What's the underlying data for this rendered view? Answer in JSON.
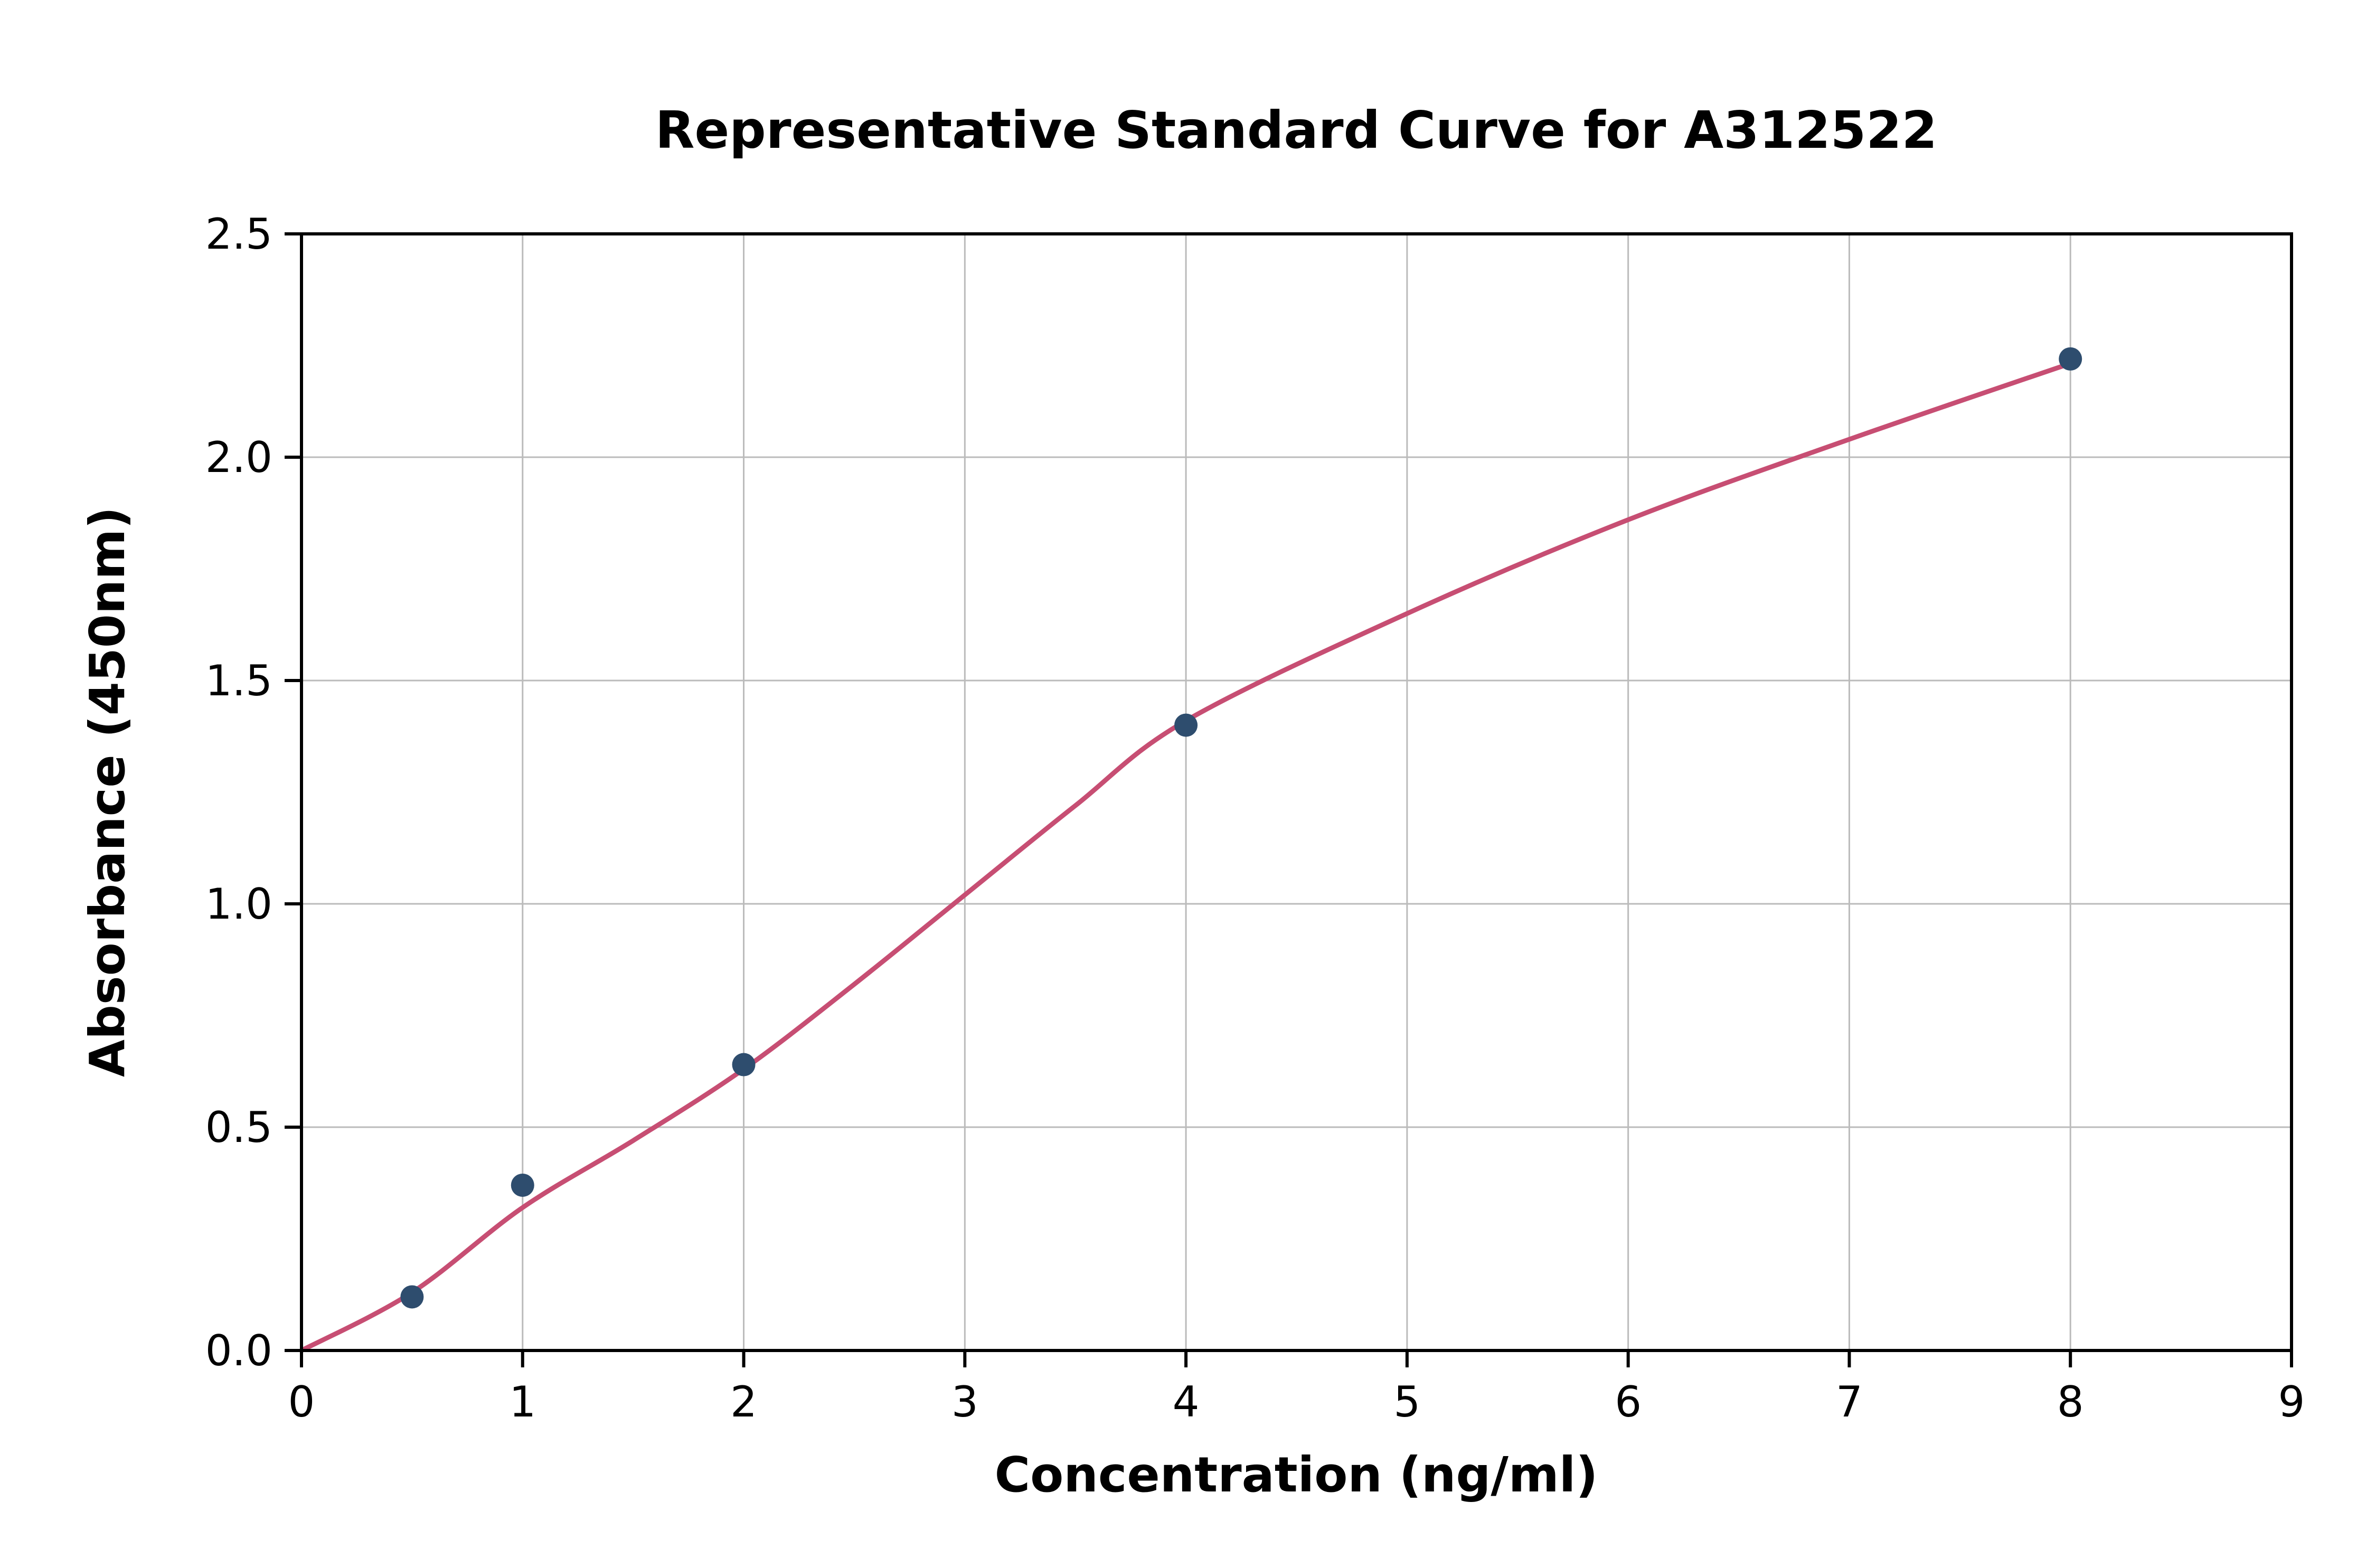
{
  "chart_data": {
    "type": "scatter",
    "title": "Representative Standard Curve for A312522",
    "xlabel": "Concentration (ng/ml)",
    "ylabel": "Absorbance (450nm)",
    "xlim": [
      0,
      9
    ],
    "ylim": [
      0,
      2.5
    ],
    "grid": true,
    "legend": "none",
    "x_ticks": [
      0,
      1,
      2,
      3,
      4,
      5,
      6,
      7,
      8,
      9
    ],
    "x_tick_labels": [
      "0",
      "1",
      "2",
      "3",
      "4",
      "5",
      "6",
      "7",
      "8",
      "9"
    ],
    "y_ticks": [
      0,
      0.5,
      1.0,
      1.5,
      2.0,
      2.5
    ],
    "y_tick_labels": [
      "0.0",
      "0.5",
      "1.0",
      "1.5",
      "2.0",
      "2.5"
    ],
    "points": {
      "name": "standard-samples",
      "x": [
        0.5,
        1,
        2,
        4,
        8
      ],
      "y": [
        0.12,
        0.37,
        0.64,
        1.4,
        2.22
      ]
    },
    "fit_curve": {
      "name": "four-parameter-fit",
      "x": [
        0,
        0.5,
        1,
        1.5,
        2,
        2.5,
        3,
        3.5,
        4,
        5,
        6,
        7,
        8
      ],
      "y": [
        0.0,
        0.13,
        0.32,
        0.47,
        0.63,
        0.82,
        1.02,
        1.22,
        1.41,
        1.65,
        1.86,
        2.04,
        2.21
      ]
    },
    "colors": {
      "point": "#2e4d6e",
      "curve": "#c74e73",
      "grid": "#bbbbbb",
      "axis": "#000000",
      "background": "#ffffff"
    },
    "marker_radius": 22,
    "curve_width": 9
  }
}
